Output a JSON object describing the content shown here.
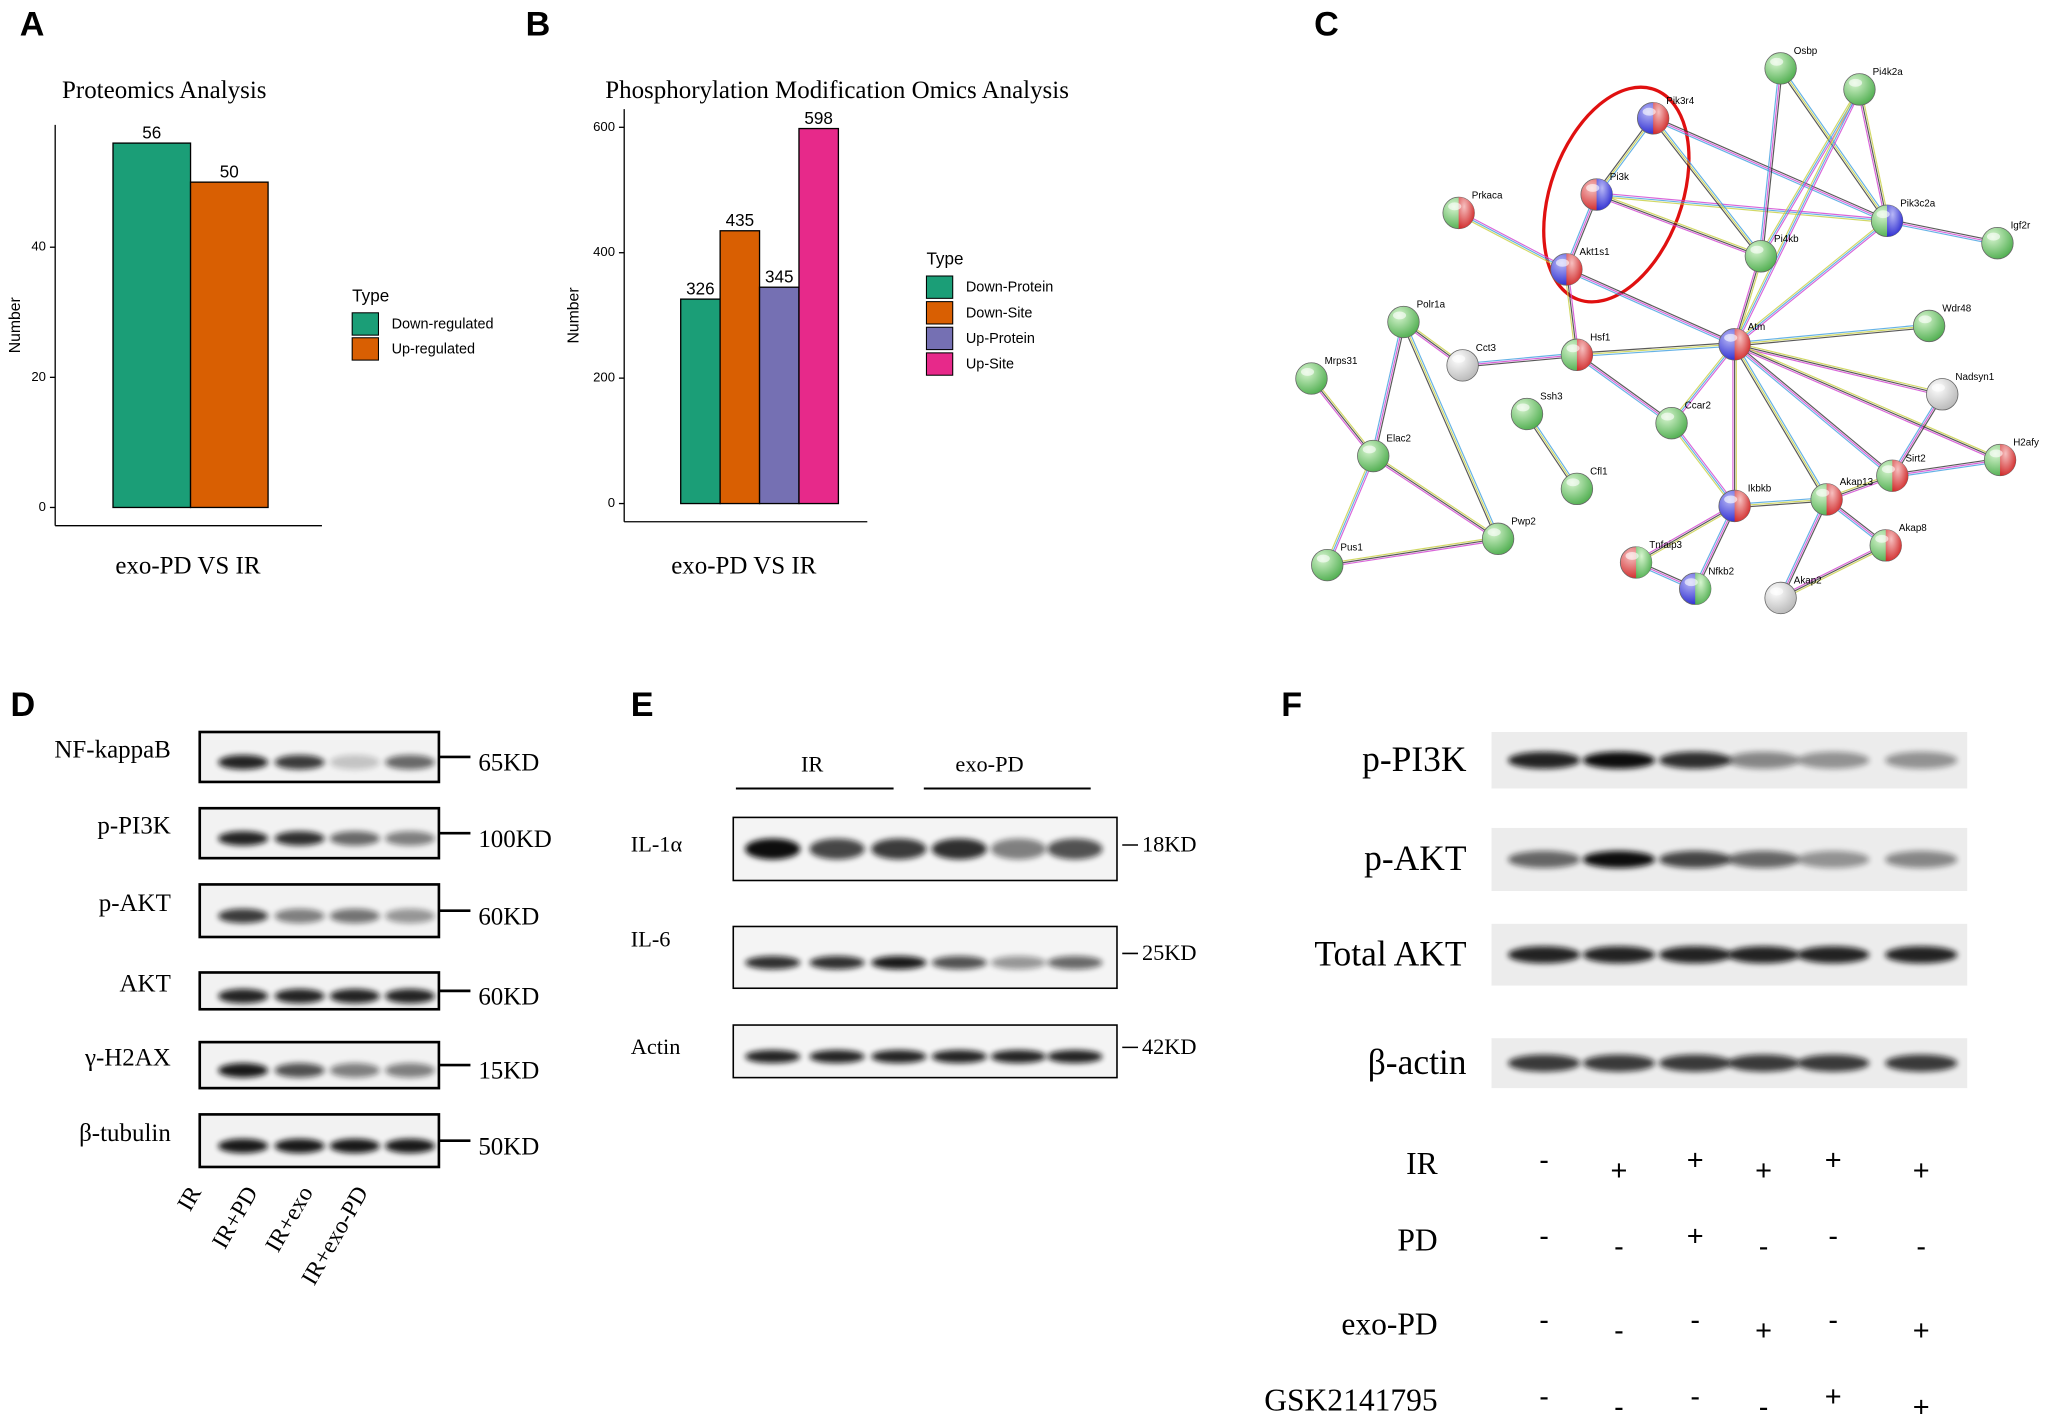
{
  "panel_labels": [
    "A",
    "B",
    "C",
    "D",
    "E",
    "F"
  ],
  "chart_data": [
    {
      "type": "bar",
      "title": "Proteomics Analysis",
      "categories": [
        "exo-PD VS IR"
      ],
      "ylabel": "Number",
      "legend_title": "Type",
      "series": [
        {
          "name": "Down-regulated",
          "color": "#1b9e77",
          "values": [
            56
          ]
        },
        {
          "name": "Up-regulated",
          "color": "#d95f02",
          "values": [
            50
          ]
        }
      ],
      "ylim": [
        -2.8,
        58.8
      ],
      "yticks": [
        0,
        20,
        40
      ]
    },
    {
      "type": "bar",
      "title": "Phosphorylation Modification Omics Analysis",
      "categories": [
        "exo-PD VS IR"
      ],
      "ylabel": "Number",
      "legend_title": "Type",
      "series": [
        {
          "name": "Down-Protein",
          "color": "#1b9e77",
          "values": [
            326
          ]
        },
        {
          "name": "Down-Site",
          "color": "#d95f02",
          "values": [
            435
          ]
        },
        {
          "name": "Up-Protein",
          "color": "#7570b3",
          "values": [
            345
          ]
        },
        {
          "name": "Up-Site",
          "color": "#e7298a",
          "values": [
            598
          ]
        }
      ],
      "ylim": [
        -29,
        629
      ],
      "yticks": [
        0,
        200,
        400,
        600
      ]
    }
  ],
  "network": {
    "nodes": [
      "Osbp",
      "Pi4k2a",
      "Pik3r4",
      "Pi3k",
      "Prkaca",
      "Pik3c2a",
      "Igf2r",
      "Pi4kb",
      "Akt1s1",
      "Polr1a",
      "Wdr48",
      "Atm",
      "Mrps31",
      "Cct3",
      "Hsf1",
      "Nadsyn1",
      "Ssh3",
      "Ccar2",
      "Elac2",
      "H2afy",
      "Sirt2",
      "Cfl1",
      "Akap13",
      "Ikbkb",
      "Pwp2",
      "Akap8",
      "Pus1",
      "Tnfaip3",
      "Nfkb2",
      "Akap2"
    ]
  },
  "blot_d": {
    "rows": [
      {
        "protein": "NF-kappaB",
        "size": "65KD"
      },
      {
        "protein": "p-PI3K",
        "size": "100KD"
      },
      {
        "protein": "p-AKT",
        "size": "60KD"
      },
      {
        "protein": "AKT",
        "size": "60KD"
      },
      {
        "protein": "γ-H2AX",
        "size": "15KD"
      },
      {
        "protein": "β-tubulin",
        "size": "50KD"
      }
    ],
    "lanes": [
      "IR",
      "IR+PD",
      "IR+exo",
      "IR+exo-PD"
    ]
  },
  "blot_e": {
    "groups": [
      "IR",
      "exo-PD"
    ],
    "rows": [
      {
        "protein": "IL-1α",
        "size": "18KD"
      },
      {
        "protein": "IL-6",
        "size": "25KD"
      },
      {
        "protein": "Actin",
        "size": "42KD"
      }
    ]
  },
  "blot_f": {
    "rows": [
      "p-PI3K",
      "p-AKT",
      "Total AKT",
      "β-actin"
    ],
    "conditions": [
      {
        "name": "IR",
        "signs": [
          "-",
          "+",
          "+",
          "+",
          "+",
          "+"
        ]
      },
      {
        "name": "PD",
        "signs": [
          "-",
          "-",
          "+",
          "-",
          "-",
          "-"
        ]
      },
      {
        "name": "exo-PD",
        "signs": [
          "-",
          "-",
          "-",
          "+",
          "-",
          "+"
        ]
      },
      {
        "name": "GSK2141795",
        "signs": [
          "-",
          "-",
          "-",
          "-",
          "+",
          "+"
        ]
      }
    ]
  }
}
